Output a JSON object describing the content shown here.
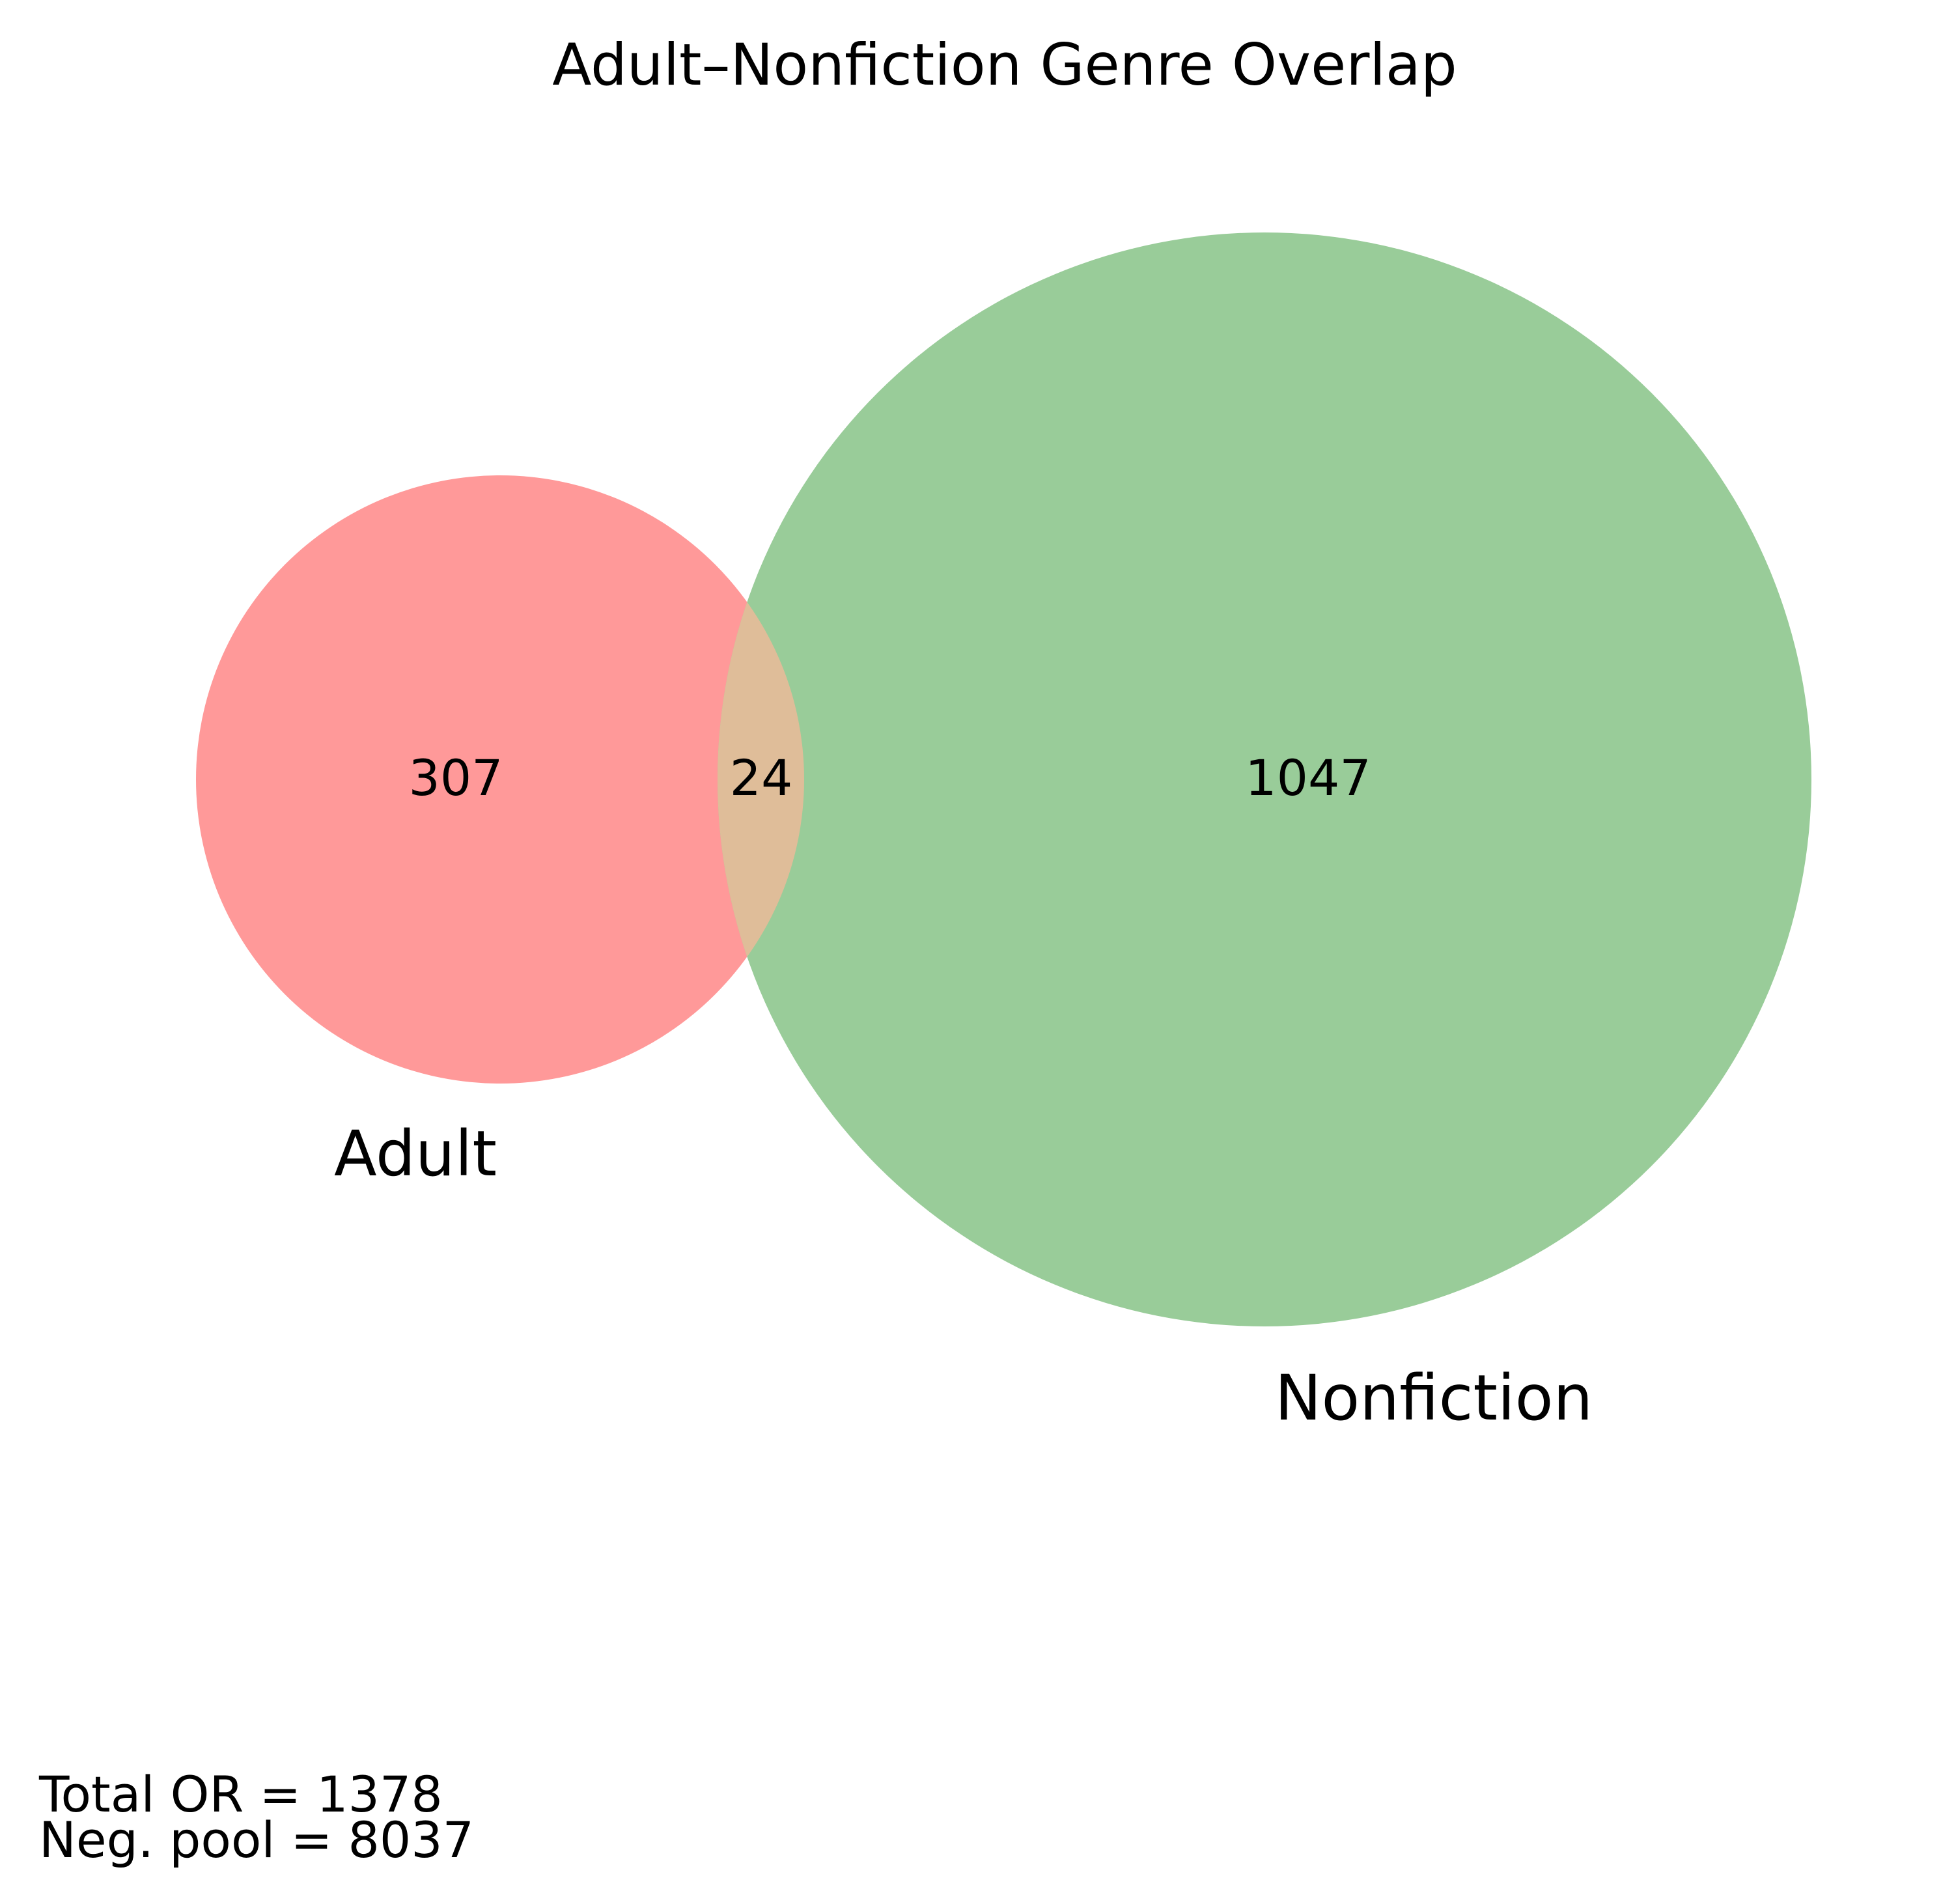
{
  "title": "Adult–Nonfiction Genre Overlap",
  "chart_data": {
    "type": "venn",
    "title": "Adult–Nonfiction Genre Overlap",
    "sets": [
      {
        "name": "Adult",
        "color": "#ff9999",
        "only_count": 307
      },
      {
        "name": "Nonfiction",
        "color": "#99cc99",
        "only_count": 1047
      }
    ],
    "intersection": {
      "sets": [
        "Adult",
        "Nonfiction"
      ],
      "count": 24,
      "color": "#dfbd99"
    },
    "region_labels": {
      "adult_only": "307",
      "intersection": "24",
      "nonfiction_only": "1047"
    }
  },
  "footnote": {
    "total_line": "Total OR = 1378",
    "neg_pool_line": "Neg. pool = 8037"
  }
}
